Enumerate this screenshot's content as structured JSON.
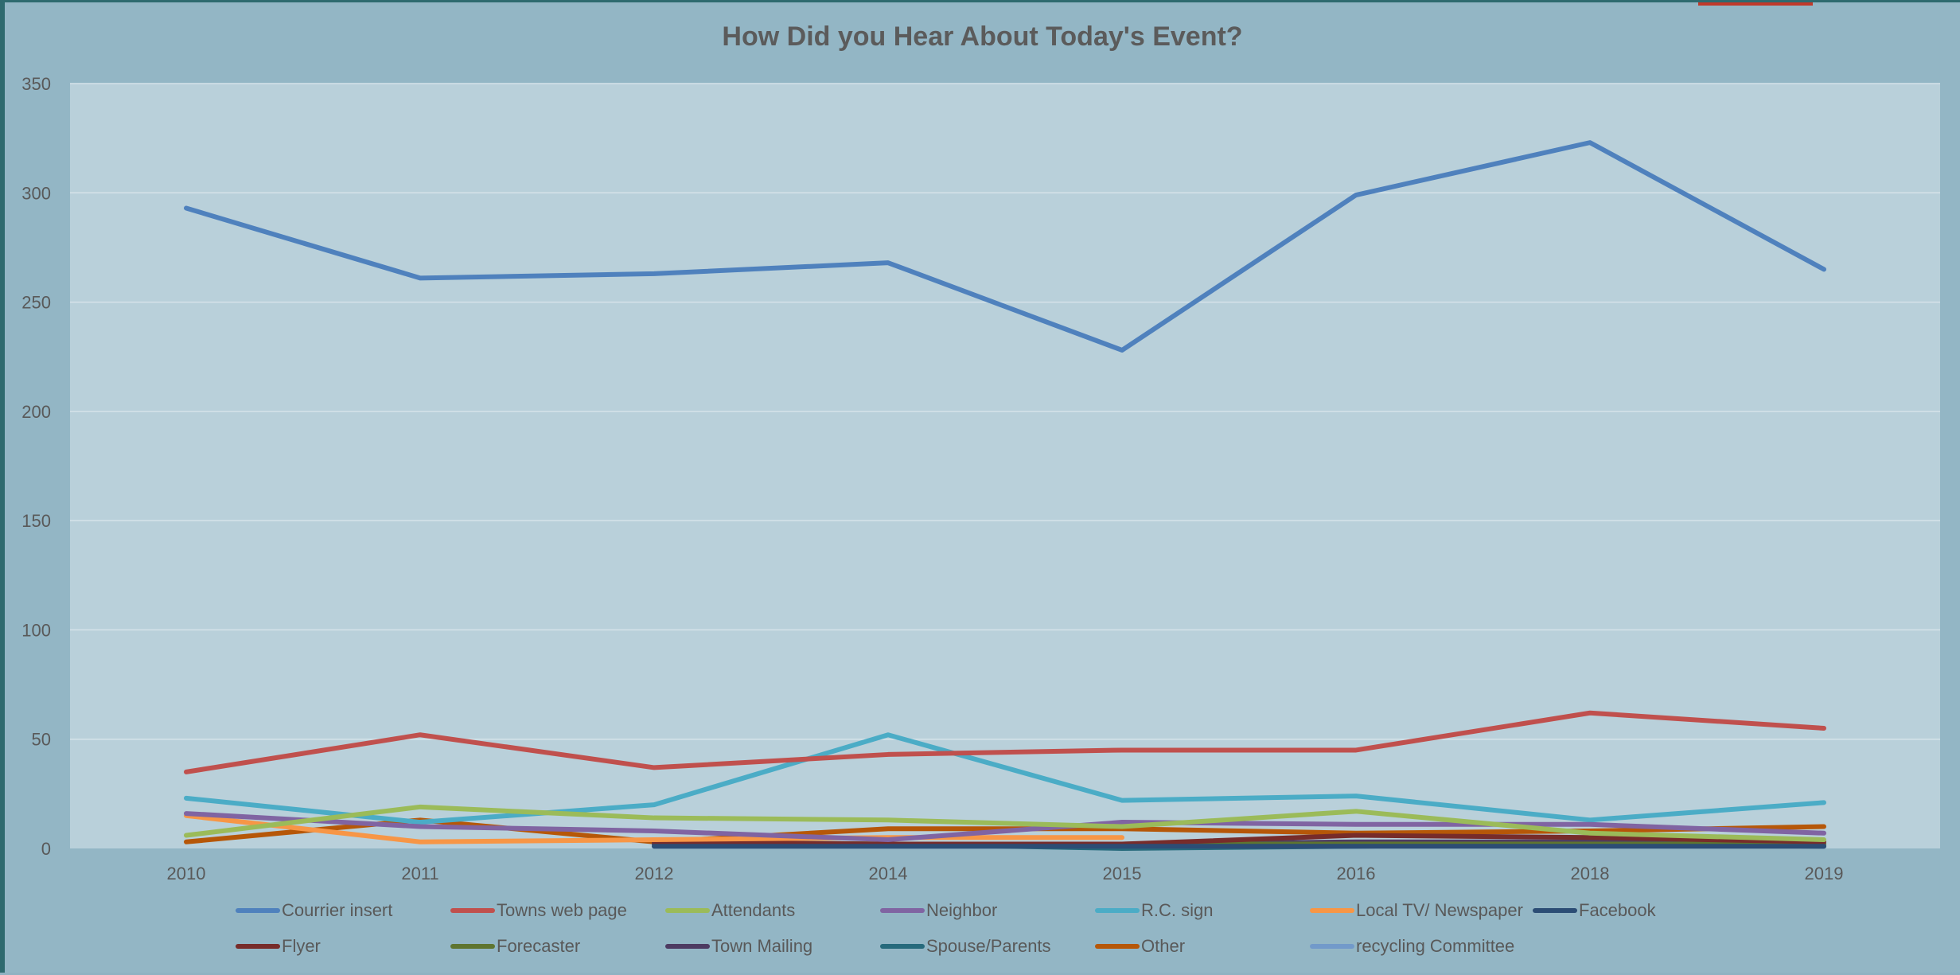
{
  "chart_data": {
    "type": "line",
    "title": "How Did you Hear About Today's Event?",
    "xlabel": "",
    "ylabel": "",
    "ylim": [
      0,
      350
    ],
    "yticks": [
      0,
      50,
      100,
      150,
      200,
      250,
      300,
      350
    ],
    "categories": [
      "2010",
      "2011",
      "2012",
      "2014",
      "2015",
      "2016",
      "2018",
      "2019"
    ],
    "grid": true,
    "legend_position": "bottom",
    "series": [
      {
        "name": "Courrier insert",
        "color": "#4f81bd",
        "values": [
          293,
          261,
          263,
          268,
          228,
          299,
          323,
          265
        ]
      },
      {
        "name": "Towns web page",
        "color": "#c0504d",
        "values": [
          35,
          52,
          37,
          43,
          45,
          45,
          62,
          55
        ]
      },
      {
        "name": "Attendants",
        "color": "#9bbb59",
        "values": [
          6,
          19,
          14,
          13,
          10,
          17,
          7,
          4
        ]
      },
      {
        "name": "Neighbor",
        "color": "#8064a2",
        "values": [
          16,
          10,
          8,
          4,
          12,
          11,
          11,
          7
        ]
      },
      {
        "name": "R.C. sign",
        "color": "#4bacc6",
        "values": [
          23,
          12,
          20,
          52,
          22,
          24,
          13,
          21
        ]
      },
      {
        "name": "Local TV/ Newspaper",
        "color": "#f79646",
        "values": [
          15,
          3,
          4,
          5,
          5,
          null,
          null,
          null
        ]
      },
      {
        "name": "Facebook",
        "color": "#2c4d75",
        "values": [
          null,
          null,
          1,
          1,
          1,
          1,
          1,
          1
        ]
      },
      {
        "name": "Flyer",
        "color": "#772c2a",
        "values": [
          null,
          null,
          3,
          2,
          2,
          6,
          5,
          3
        ]
      },
      {
        "name": "Forecaster",
        "color": "#5f7530",
        "values": [
          null,
          null,
          3,
          2,
          2,
          2,
          2,
          2
        ]
      },
      {
        "name": "Town Mailing",
        "color": "#4d3b62",
        "values": [
          null,
          null,
          2,
          2,
          2,
          3,
          3,
          2
        ]
      },
      {
        "name": "Spouse/Parents",
        "color": "#276a7c",
        "values": [
          null,
          null,
          2,
          2,
          0,
          1,
          2,
          1
        ]
      },
      {
        "name": "Other",
        "color": "#b65708",
        "values": [
          3,
          13,
          3,
          9,
          9,
          7,
          8,
          10
        ]
      },
      {
        "name": "recycling Committee",
        "color": "#729aca",
        "values": [
          null,
          null,
          1,
          1,
          1,
          1,
          2,
          1
        ]
      }
    ]
  }
}
